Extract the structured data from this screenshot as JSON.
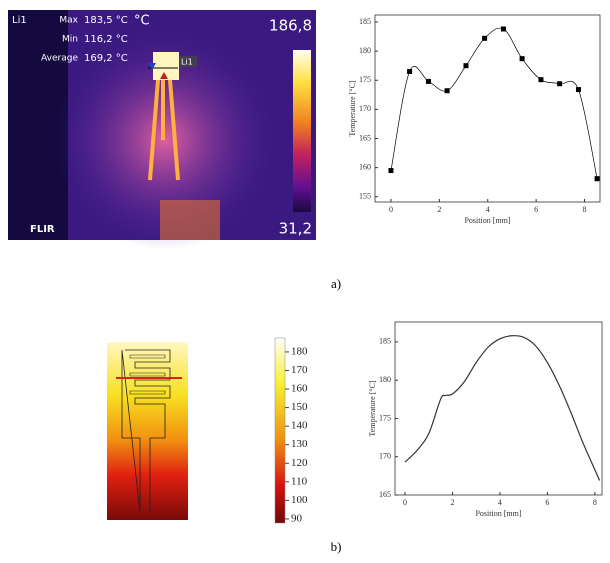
{
  "thermal_image": {
    "line_name": "Li1",
    "max_label": "Max",
    "max_value": "183,5 °C",
    "min_label": "Min",
    "min_value": "116,2 °C",
    "avg_label": "Average",
    "avg_value": "169,2 °C",
    "unit": "°C",
    "scale_max": "186,8",
    "scale_min": "31,2",
    "brand": "FLIR",
    "marker_label": "Li1"
  },
  "simulation": {
    "colorbar_lim": [
      87.8,
      187.5
    ],
    "colorbar_ticks": [
      90,
      100,
      110,
      120,
      130,
      140,
      150,
      160,
      170,
      180
    ]
  },
  "captions": [
    "a)",
    "b)"
  ],
  "chart_data": [
    {
      "type": "scatter",
      "x": [
        0,
        0.77,
        1.55,
        2.32,
        3.1,
        3.87,
        4.65,
        5.42,
        6.2,
        6.97,
        7.75,
        8.52
      ],
      "values": [
        159.5,
        176.5,
        174.8,
        173.2,
        177.5,
        182.2,
        183.8,
        178.7,
        175.1,
        174.4,
        173.4,
        158.1
      ],
      "color": "#000000",
      "x_label": "Position [mm]",
      "y_label": "Temperature [°C]",
      "xlim": [
        -0.66,
        8.64
      ],
      "ylim": [
        154.1,
        186.2
      ],
      "xticks": [
        0,
        2,
        4,
        6,
        8
      ],
      "yticks": [
        155,
        160,
        165,
        170,
        175,
        180,
        185
      ]
    },
    {
      "type": "line",
      "x": [
        0,
        0.5,
        1,
        1.5,
        1.7,
        2,
        2.5,
        3,
        3.5,
        4,
        4.5,
        5,
        5.5,
        6,
        6.5,
        7,
        7.5,
        8,
        8.2
      ],
      "values": [
        169.3,
        170.8,
        173,
        177.5,
        178,
        178.2,
        179.8,
        182.3,
        184.3,
        185.4,
        185.8,
        185.6,
        184.5,
        182.3,
        179.3,
        175.7,
        171.8,
        168.3,
        166.9
      ],
      "color": "#333333",
      "x_label": "Position [mm]",
      "y_label": "Temperature [°C]",
      "xlim": [
        -0.42,
        8.3
      ],
      "ylim": [
        165,
        187.6
      ],
      "xticks": [
        0,
        2,
        4,
        6,
        8
      ],
      "yticks": [
        165,
        170,
        175,
        180,
        185
      ]
    }
  ]
}
